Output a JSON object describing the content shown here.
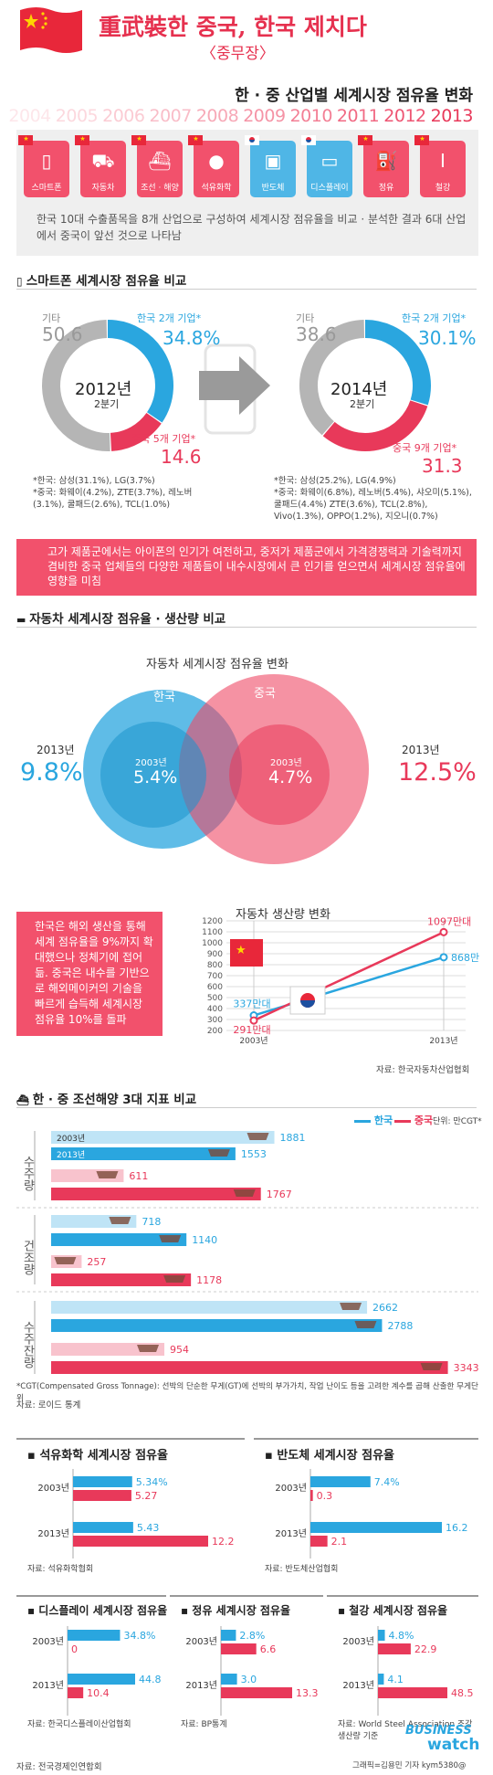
{
  "header": {
    "title": "重武裝한 중국, 한국 제치다",
    "subtitle": "〈중무장〉",
    "market_title": "한 · 중 산업별 세계시장 점유율 변화",
    "years": [
      "2004",
      "2005",
      "2006",
      "2007",
      "2008",
      "2009",
      "2010",
      "2011",
      "2012",
      "2013"
    ]
  },
  "industries": [
    {
      "label": "스마트폰",
      "icon": "phone-icon",
      "flag": "china"
    },
    {
      "label": "자동차",
      "icon": "car-icon",
      "flag": "china"
    },
    {
      "label": "조선 · 해양",
      "icon": "ship-icon",
      "flag": "china"
    },
    {
      "label": "석유화학",
      "icon": "drop-icon",
      "flag": "china"
    },
    {
      "label": "반도체",
      "icon": "chip-icon",
      "flag": "korea"
    },
    {
      "label": "디스플레이",
      "icon": "monitor-icon",
      "flag": "korea"
    },
    {
      "label": "정유",
      "icon": "fuel-icon",
      "flag": "china"
    },
    {
      "label": "철강",
      "icon": "steel-icon",
      "flag": "china"
    }
  ],
  "industry_desc": "한국 10대 수출품목을 8개 산업으로 구성하여 세계시장 점유율을 비교 · 분석한 결과 6대 산업에서 중국이 앞선 것으로 나타남",
  "smartphone": {
    "title": "스마트폰 세계시장 점유율 비교",
    "donuts": [
      {
        "center_year": "2012년",
        "center_q": "2분기",
        "other_label": "기타",
        "other": "50.6",
        "kr_label": "한국 2개 기업*",
        "kr": "34.8%",
        "cn_label": "중국 5개 기업*",
        "cn": "14.6",
        "note_kr": "*한국: 삼성(31.1%), LG(3.7%)",
        "note_cn": "*중국: 화웨이(4.2%), ZTE(3.7%), 레노버(3.1%), 쿨패드(2.6%), TCL(1.0%)"
      },
      {
        "center_year": "2014년",
        "center_q": "2분기",
        "other_label": "기타",
        "other": "38.6",
        "kr_label": "한국 2개 기업*",
        "kr": "30.1%",
        "cn_label": "중국 9개 기업*",
        "cn": "31.3",
        "note_kr": "*한국: 삼성(25.2%), LG(4.9%)",
        "note_cn": "*중국: 화웨이(6.8%), 레노버(5.4%), 샤오미(5.1%), 쿨패드(4.4%) ZTE(3.6%), TCL(2.8%), Vivo(1.3%), OPPO(1.2%), 지오니(0.7%)"
      }
    ],
    "callout": "고가 제품군에서는 아이폰의 인기가 여전하고, 중저가 제품군에서 가격경쟁력과 기술력까지 겸비한 중국 업체들의 다양한 제품들이 내수시장에서 큰 인기를 얻으면서 세계시장 점유율에 영향을 미침"
  },
  "auto": {
    "title": "자동차 세계시장 점유율 · 생산량 비교",
    "venn_title": "자동차 세계시장 점유율 변화",
    "kr_label": "한국",
    "cn_label": "중국",
    "kr_2003_label": "2003년",
    "kr_2003": "5.4%",
    "cn_2003_label": "2003년",
    "cn_2003": "4.7%",
    "kr_2013_label": "2013년",
    "kr_2013": "9.8%",
    "cn_2013_label": "2013년",
    "cn_2013": "12.5%",
    "callout": "한국은 해외 생산을 통해 세계 점유율을 9%까지 확대했으나 정체기에 접어듦. 중국은 내수를 기반으로 해외메이커의 기술을 빠르게 습득해 세계시장 점유율 10%를 돌파",
    "prod_title": "자동차 생산량 변화",
    "source": "자료: 한국자동차산업협회"
  },
  "ship": {
    "title": "한 · 중 조선해양 3대 지표 비교",
    "legend_kr": "한국",
    "legend_cn": "중국",
    "unit": "단위: 만CGT*",
    "groups": [
      {
        "name": "수주량",
        "y2003_label": "2003년",
        "y2013_label": "2013년"
      },
      {
        "name": "건조량"
      },
      {
        "name": "수주잔량"
      }
    ],
    "note": "*CGT(Compensated Gross Tonnage): 선박의 단순한 무게(GT)에 선박의 부가가치, 작업 난이도 등을 고려한 계수를 곱해 산출한 무게단위",
    "source": "자료: 로이드 통계"
  },
  "panels": [
    {
      "title": "석유화학 세계시장 점유율",
      "source": "자료: 석유화학협회"
    },
    {
      "title": "반도체 세계시장 점유율",
      "source": "자료: 반도체산업협회"
    },
    {
      "title": "디스플레이 세계시장 점유율",
      "source": "자료: 한국디스플레이산업협회"
    },
    {
      "title": "정유 세계시장 점유율",
      "source": "자료: BP통계"
    },
    {
      "title": "철강 세계시장 점유율",
      "source": "자료: World Steel Association 조강 생산량 기준"
    }
  ],
  "footer": {
    "left": "자료: 전국경제인연합회",
    "brand_top": "BUSINESS",
    "brand_bottom": "watch",
    "credit": "그래픽=김용민 기자 kym5380@"
  },
  "colors": {
    "korea": "#2aa6df",
    "china": "#e8395a",
    "korea_light": "#bfe4f6",
    "china_light": "#f8c3cd",
    "gray": "#b5b5b5"
  },
  "chart_data": [
    {
      "type": "pie",
      "title": "2012년 2분기",
      "labels": [
        "한국",
        "중국",
        "기타"
      ],
      "values": [
        34.8,
        14.6,
        50.6
      ]
    },
    {
      "type": "pie",
      "title": "2014년 2분기",
      "labels": [
        "한국",
        "중국",
        "기타"
      ],
      "values": [
        30.1,
        31.3,
        38.6
      ]
    },
    {
      "type": "line",
      "title": "자동차 생산량 변화",
      "x": [
        "2003년",
        "2013년"
      ],
      "series": [
        {
          "name": "한국",
          "values": [
            337,
            868
          ],
          "labels": [
            "337만대",
            "868만대"
          ]
        },
        {
          "name": "중국",
          "values": [
            291,
            1097
          ],
          "labels": [
            "291만대",
            "1097만대"
          ]
        }
      ],
      "yticks": [
        "200",
        "300",
        "400",
        "500",
        "600",
        "700",
        "800",
        "900",
        "1000",
        "1100",
        "1200"
      ],
      "ylim": [
        200,
        1200
      ]
    },
    {
      "type": "bar",
      "title": "한 · 중 조선해양 3대 지표 비교",
      "categories": [
        "수주량",
        "건조량",
        "수주잔량"
      ],
      "series": [
        {
          "name": "한국",
          "values_2003": [
            1881,
            718,
            2662
          ],
          "values_2013": [
            1553,
            1140,
            2788
          ]
        },
        {
          "name": "중국",
          "values_2003": [
            611,
            257,
            954
          ],
          "values_2013": [
            1767,
            1178,
            3343
          ]
        }
      ]
    },
    {
      "type": "bar",
      "title": "석유화학 세계시장 점유율",
      "x": [
        "2003년",
        "2013년"
      ],
      "korea": [
        5.34,
        5.43
      ],
      "china": [
        5.27,
        12.2
      ],
      "korea_labels": [
        "5.34%",
        "5.43"
      ],
      "china_labels": [
        "5.27",
        "12.2"
      ]
    },
    {
      "type": "bar",
      "title": "반도체 세계시장 점유율",
      "x": [
        "2003년",
        "2013년"
      ],
      "korea": [
        7.4,
        16.2
      ],
      "china": [
        0.3,
        2.1
      ],
      "korea_labels": [
        "7.4%",
        "16.2"
      ],
      "china_labels": [
        "0.3",
        "2.1"
      ]
    },
    {
      "type": "bar",
      "title": "디스플레이 세계시장 점유율",
      "x": [
        "2003년",
        "2013년"
      ],
      "korea": [
        34.8,
        44.8
      ],
      "china": [
        0,
        10.4
      ],
      "korea_labels": [
        "34.8%",
        "44.8"
      ],
      "china_labels": [
        "0",
        "10.4"
      ]
    },
    {
      "type": "bar",
      "title": "정유 세계시장 점유율",
      "x": [
        "2003년",
        "2013년"
      ],
      "korea": [
        2.8,
        3.0
      ],
      "china": [
        6.6,
        13.3
      ],
      "korea_labels": [
        "2.8%",
        "3.0"
      ],
      "china_labels": [
        "6.6",
        "13.3"
      ]
    },
    {
      "type": "bar",
      "title": "철강 세계시장 점유율",
      "x": [
        "2003년",
        "2013년"
      ],
      "korea": [
        4.8,
        4.1
      ],
      "china": [
        22.9,
        48.5
      ],
      "korea_labels": [
        "4.8%",
        "4.1"
      ],
      "china_labels": [
        "22.9",
        "48.5"
      ]
    }
  ]
}
